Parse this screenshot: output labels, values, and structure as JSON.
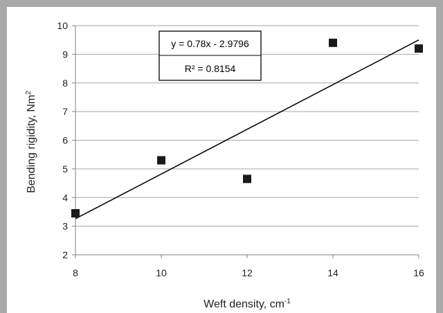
{
  "chart_data": {
    "type": "scatter",
    "xlabel": "Weft density, cm",
    "xlabel_sup": "-1",
    "ylabel": "Bending rigidity, Nm",
    "ylabel_sup": "2",
    "xlim": [
      8,
      16
    ],
    "ylim": [
      2,
      10
    ],
    "x_ticks": [
      8,
      10,
      12,
      14,
      16
    ],
    "y_ticks": [
      2,
      3,
      4,
      5,
      6,
      7,
      8,
      9,
      10
    ],
    "grid": "horizontal",
    "series": [
      {
        "marker": "square",
        "color": "#1a1a1a",
        "points": [
          {
            "x": 8,
            "y": 3.45
          },
          {
            "x": 10,
            "y": 5.3
          },
          {
            "x": 12,
            "y": 4.65
          },
          {
            "x": 14,
            "y": 9.4
          },
          {
            "x": 16,
            "y": 9.2
          }
        ]
      }
    ],
    "trendline": {
      "slope": 0.78,
      "intercept": -2.9796,
      "equation": "y = 0.78x - 2.9796",
      "r2_label": "R² = 0.8154"
    }
  }
}
